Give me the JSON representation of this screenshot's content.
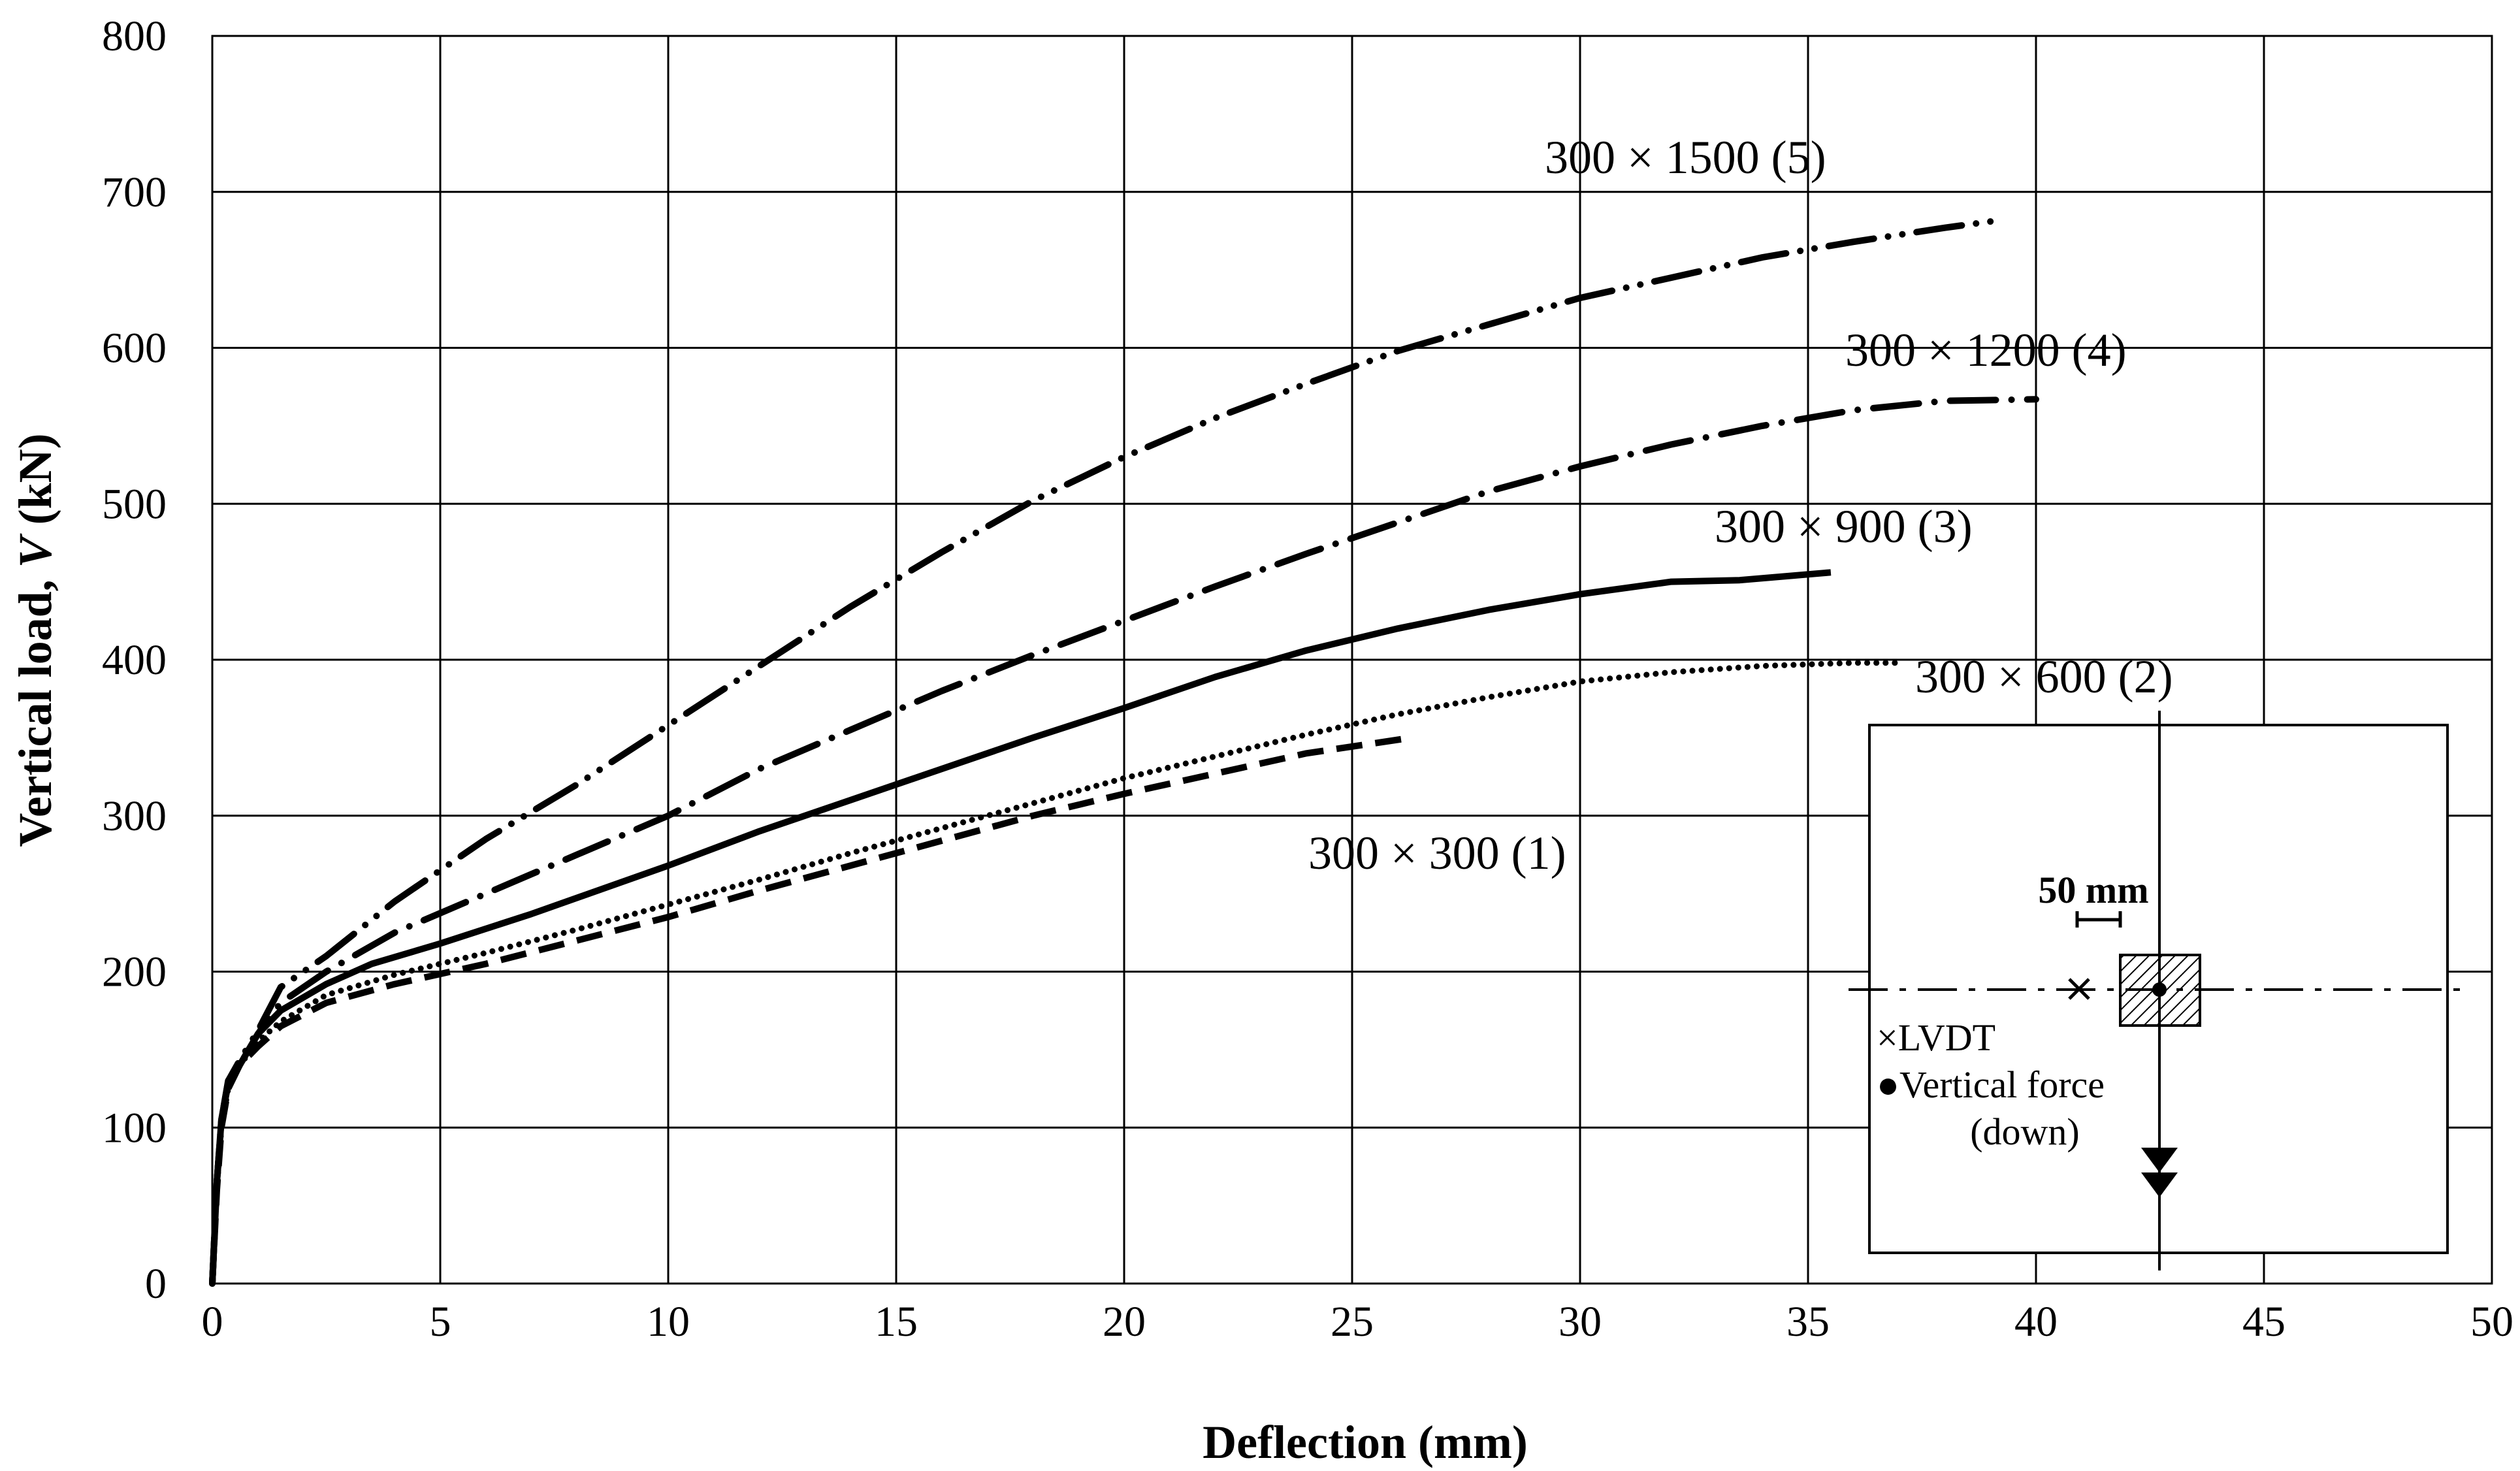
{
  "chart_data": {
    "type": "line",
    "title": "",
    "xlabel": "Deflection (mm)",
    "ylabel_prefix": "Vertical load, ",
    "ylabel_var": "V",
    "ylabel_suffix": " (kN)",
    "xlim": [
      0,
      50
    ],
    "ylim": [
      0,
      800
    ],
    "xticks": [
      0,
      5,
      10,
      15,
      20,
      25,
      30,
      35,
      40,
      45,
      50
    ],
    "yticks": [
      0,
      100,
      200,
      300,
      400,
      500,
      600,
      700,
      800
    ],
    "grid": true,
    "series": [
      {
        "name": "300 × 300  (1)",
        "style": "dashed",
        "x": [
          0,
          0.1,
          0.2,
          0.35,
          0.6,
          1.0,
          1.5,
          2.5,
          4,
          6,
          8,
          10,
          12,
          14,
          16,
          18,
          20,
          22,
          24,
          26.3
        ],
        "y": [
          0,
          60,
          100,
          125,
          140,
          152,
          165,
          180,
          192,
          205,
          220,
          235,
          252,
          268,
          284,
          300,
          314,
          327,
          340,
          350
        ]
      },
      {
        "name": "300 × 600 (2)",
        "style": "dotted",
        "x": [
          0,
          0.1,
          0.2,
          0.35,
          0.6,
          1.0,
          1.5,
          2.5,
          4,
          6,
          8,
          10,
          12,
          14,
          16,
          18,
          20,
          22,
          24,
          26,
          28,
          30,
          32,
          34,
          36,
          37
        ],
        "y": [
          0,
          60,
          100,
          125,
          140,
          155,
          168,
          185,
          198,
          212,
          227,
          243,
          259,
          276,
          292,
          308,
          324,
          338,
          352,
          365,
          376,
          386,
          392,
          396,
          398,
          398
        ]
      },
      {
        "name": "300 × 900 (3)",
        "style": "solid",
        "x": [
          0,
          0.1,
          0.2,
          0.35,
          0.6,
          1.0,
          1.5,
          2.5,
          3.5,
          5,
          7,
          10,
          12,
          14,
          16,
          18,
          20,
          22,
          24,
          26,
          28,
          30,
          32,
          33.5,
          35.5
        ],
        "y": [
          0,
          65,
          105,
          130,
          140,
          160,
          175,
          192,
          205,
          218,
          237,
          268,
          290,
          310,
          330,
          350,
          369,
          389,
          406,
          420,
          432,
          442,
          450,
          451,
          456
        ]
      },
      {
        "name": "300 × 1200 (4)",
        "style": "dash-dot",
        "x": [
          0,
          0.1,
          0.2,
          0.35,
          0.6,
          1.0,
          1.5,
          2.5,
          4,
          6,
          8,
          10,
          12,
          14,
          16,
          18,
          20,
          22,
          24,
          26,
          28,
          30,
          32,
          34,
          36,
          38,
          40
        ],
        "y": [
          0,
          65,
          105,
          128,
          140,
          160,
          180,
          200,
          225,
          250,
          275,
          300,
          330,
          355,
          380,
          403,
          425,
          447,
          468,
          488,
          508,
          524,
          538,
          550,
          560,
          566,
          567
        ]
      },
      {
        "name": "300 × 1500 (5)",
        "style": "dash-dot-dot",
        "x": [
          0,
          0.1,
          0.2,
          0.35,
          0.6,
          1.0,
          1.5,
          2.5,
          4,
          6,
          8,
          10,
          12,
          14,
          16,
          18,
          20,
          22,
          24,
          26,
          28,
          30,
          32,
          34,
          36,
          38,
          39
        ],
        "y": [
          0,
          65,
          105,
          130,
          143,
          162,
          190,
          210,
          245,
          285,
          320,
          358,
          396,
          434,
          469,
          502,
          530,
          555,
          577,
          598,
          615,
          632,
          645,
          658,
          668,
          677,
          681
        ]
      }
    ]
  },
  "labels": {
    "s1": "300 × 300  (1)",
    "s2": "300 × 600 (2)",
    "s3": "300 × 900 (3)",
    "s4": "300 × 1200 (4)",
    "s5": "300 × 1500 (5)"
  },
  "inset": {
    "dimension": "50 mm",
    "legend_lvdt_symbol": "×",
    "legend_lvdt": "LVDT",
    "legend_force_symbol": "●",
    "legend_force": "Vertical force",
    "legend_force_note": "(down)"
  }
}
